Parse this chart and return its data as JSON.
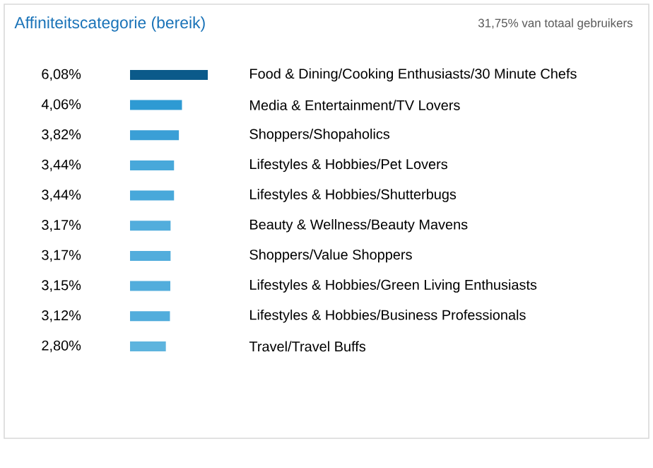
{
  "chart_data": {
    "type": "bar",
    "orientation": "horizontal",
    "title": "Affiniteitscategorie (bereik)",
    "subtitle": "31,75% van totaal gebruikers",
    "categories": [
      "Food & Dining/Cooking Enthusiasts/30 Minute Chefs",
      "Media & Entertainment/TV Lovers",
      "Shoppers/Shopaholics",
      "Lifestyles & Hobbies/Pet Lovers",
      "Lifestyles & Hobbies/Shutterbugs",
      "Beauty & Wellness/Beauty Mavens",
      "Shoppers/Value Shoppers",
      "Lifestyles & Hobbies/Green Living Enthusiasts",
      "Lifestyles & Hobbies/Business Professionals",
      "Travel/Travel Buffs"
    ],
    "values": [
      6.08,
      4.06,
      3.82,
      3.44,
      3.44,
      3.17,
      3.17,
      3.15,
      3.12,
      2.8
    ],
    "value_labels": [
      "6,08%",
      "4,06%",
      "3,82%",
      "3,44%",
      "3,44%",
      "3,17%",
      "3,17%",
      "3,15%",
      "3,12%",
      "2,80%"
    ],
    "colors": [
      "#0b5a8a",
      "#2e9ad3",
      "#3a9fd6",
      "#48a8da",
      "#48a8da",
      "#52addc",
      "#52addc",
      "#52addc",
      "#52addc",
      "#5eb4de"
    ]
  }
}
